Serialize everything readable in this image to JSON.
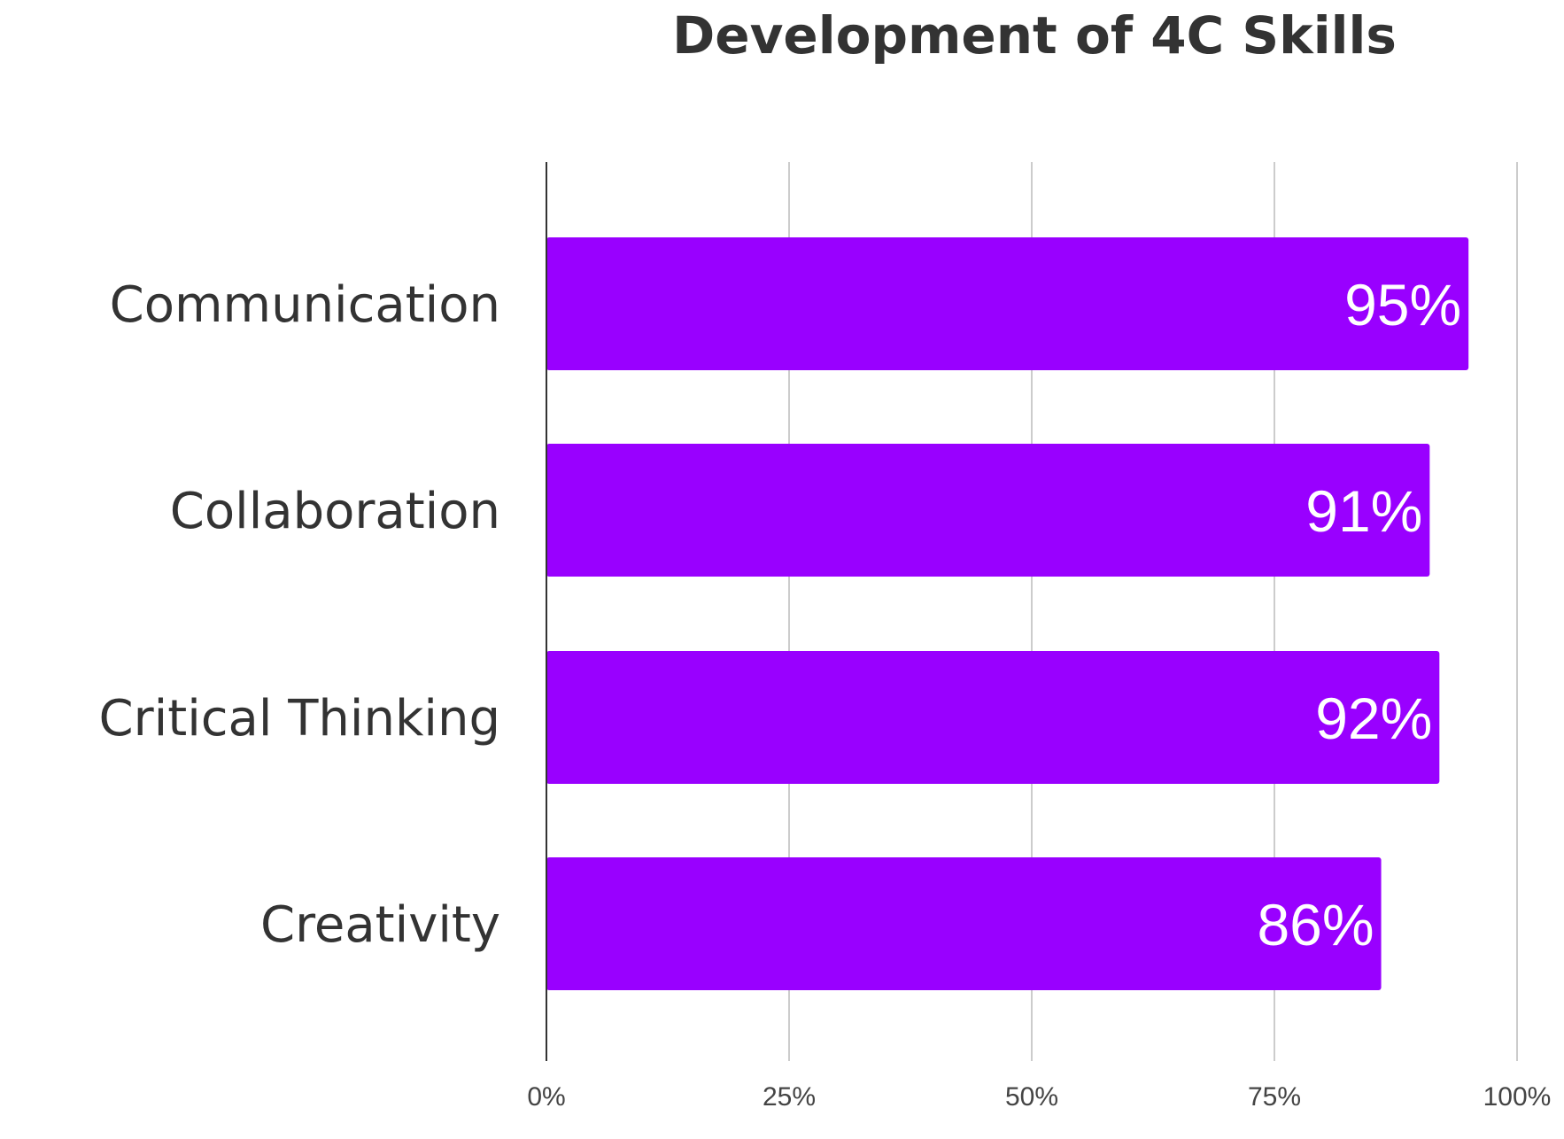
{
  "chart_data": {
    "type": "bar",
    "orientation": "horizontal",
    "title": "Development of 4C Skills",
    "xlabel": "",
    "ylabel": "",
    "categories": [
      "Communication",
      "Collaboration",
      "Critical Thinking",
      "Creativity"
    ],
    "values": [
      95,
      91,
      92,
      86
    ],
    "data_labels": [
      "95%",
      "91%",
      "92%",
      "86%"
    ],
    "xlim": [
      0,
      100
    ],
    "x_ticks": [
      0,
      25,
      50,
      75,
      100
    ],
    "x_tick_labels": [
      "0%",
      "25%",
      "50%",
      "75%",
      "100%"
    ],
    "grid": true,
    "legend": "none",
    "colors": {
      "bar": "#9900ff",
      "data_label": "#ffffff",
      "grid": "#cccccc",
      "axis": "#333333",
      "text": "#333333"
    }
  }
}
